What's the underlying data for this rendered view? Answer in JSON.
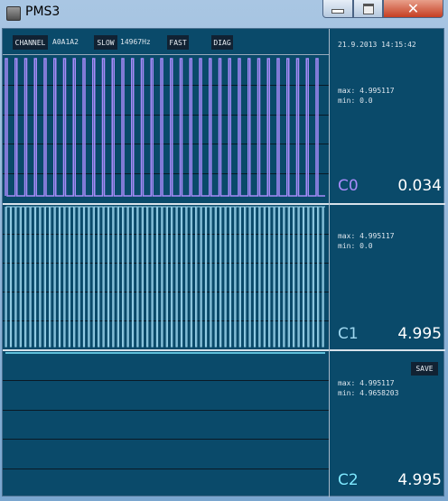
{
  "window": {
    "title": "PMS3",
    "close_glyph": "✕"
  },
  "toolbar": {
    "channel_label": "CHANNEL",
    "channel_value": "A0A1A2",
    "slow_label": "SLOW",
    "freq": "14967Hz",
    "fast_label": "FAST",
    "diag_label": "DIAG"
  },
  "datetime": "21.9.2013 14:15:42",
  "channels": [
    {
      "name": "C0",
      "value": "0.034",
      "max": "max: 4.995117",
      "min": "min: 0.0",
      "color": "#a78bfa"
    },
    {
      "name": "C1",
      "value": "4.995",
      "max": "max: 4.995117",
      "min": "min: 0.0",
      "color": "#9fd8f0"
    },
    {
      "name": "C2",
      "value": "4.995",
      "max": "max: 4.995117",
      "min": "min: 4.9658203",
      "color": "#7ee8ff"
    }
  ],
  "save_label": "SAVE",
  "icons": {
    "app": "app-icon",
    "minimize": "minimize-icon",
    "maximize": "maximize-icon",
    "close": "close-icon"
  }
}
